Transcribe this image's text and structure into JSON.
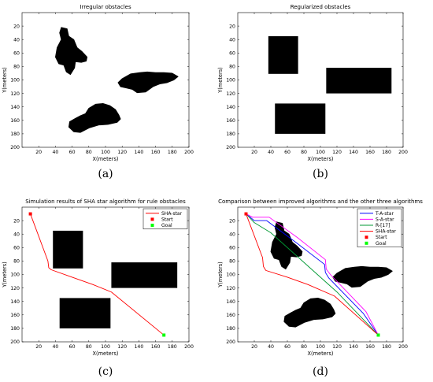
{
  "figure": {
    "panels": [
      {
        "caption": "(a)"
      },
      {
        "caption": "(b)"
      },
      {
        "caption": "(c)"
      },
      {
        "caption": "(d)"
      }
    ]
  },
  "chart_data": [
    {
      "type": "map",
      "title": "Irregular obstacles",
      "xlabel": "X(meters)",
      "ylabel": "Y(meters)",
      "xlim": [
        0,
        200
      ],
      "ylim": [
        0,
        200
      ],
      "y_inverted": true,
      "xticks": [
        20,
        40,
        60,
        80,
        100,
        120,
        140,
        160,
        180,
        200
      ],
      "yticks": [
        20,
        40,
        60,
        80,
        100,
        120,
        140,
        160,
        180,
        200
      ],
      "grid": false,
      "obstacles": [
        {
          "name": "irregular-obstacle-1",
          "polygon": [
            [
              47,
              22
            ],
            [
              54,
              24
            ],
            [
              56,
              35
            ],
            [
              62,
              40
            ],
            [
              66,
              52
            ],
            [
              72,
              58
            ],
            [
              78,
              66
            ],
            [
              77,
              72
            ],
            [
              71,
              74
            ],
            [
              64,
              73
            ],
            [
              63,
              82
            ],
            [
              58,
              92
            ],
            [
              53,
              88
            ],
            [
              50,
              78
            ],
            [
              44,
              76
            ],
            [
              40,
              66
            ],
            [
              42,
              52
            ],
            [
              47,
              40
            ],
            [
              45,
              30
            ]
          ]
        },
        {
          "name": "irregular-obstacle-2",
          "polygon": [
            [
              120,
              98
            ],
            [
              130,
              91
            ],
            [
              141,
              89
            ],
            [
              150,
              88
            ],
            [
              160,
              89
            ],
            [
              170,
              89
            ],
            [
              180,
              90
            ],
            [
              187,
              95
            ],
            [
              182,
              100
            ],
            [
              174,
              104
            ],
            [
              165,
              106
            ],
            [
              157,
              110
            ],
            [
              148,
              118
            ],
            [
              138,
              119
            ],
            [
              132,
              114
            ],
            [
              125,
              112
            ],
            [
              118,
              110
            ],
            [
              115,
              104
            ]
          ]
        },
        {
          "name": "irregular-obstacle-3",
          "polygon": [
            [
              70,
              153
            ],
            [
              76,
              150
            ],
            [
              80,
              142
            ],
            [
              88,
              136
            ],
            [
              97,
              135
            ],
            [
              105,
              138
            ],
            [
              112,
              144
            ],
            [
              116,
              152
            ],
            [
              118,
              158
            ],
            [
              114,
              163
            ],
            [
              103,
              166
            ],
            [
              92,
              167
            ],
            [
              81,
              171
            ],
            [
              70,
              178
            ],
            [
              62,
              177
            ],
            [
              56,
              170
            ],
            [
              57,
              162
            ],
            [
              64,
              157
            ]
          ]
        }
      ]
    },
    {
      "type": "map",
      "title": "Regularized obstacles",
      "xlabel": "X(meters)",
      "ylabel": "Y(meters)",
      "xlim": [
        0,
        200
      ],
      "ylim": [
        0,
        200
      ],
      "y_inverted": true,
      "xticks": [
        20,
        40,
        60,
        80,
        100,
        120,
        140,
        160,
        180,
        200
      ],
      "yticks": [
        20,
        40,
        60,
        80,
        100,
        120,
        140,
        160,
        180,
        200
      ],
      "grid": false,
      "obstacles": [
        {
          "name": "rect-obstacle-1",
          "x": [
            37,
            73
          ],
          "y": [
            35,
            91
          ]
        },
        {
          "name": "rect-obstacle-2",
          "x": [
            107,
            186
          ],
          "y": [
            82,
            120
          ]
        },
        {
          "name": "rect-obstacle-3",
          "x": [
            45,
            106
          ],
          "y": [
            135,
            180
          ]
        }
      ]
    },
    {
      "type": "line",
      "title": "Simulation results of SHA star algorithm for rule obstacles",
      "xlabel": "X(meters)",
      "ylabel": "Y(meters)",
      "xlim": [
        0,
        200
      ],
      "ylim": [
        0,
        200
      ],
      "y_inverted": true,
      "xticks": [
        20,
        40,
        60,
        80,
        100,
        120,
        140,
        160,
        180,
        200
      ],
      "yticks": [
        20,
        40,
        60,
        80,
        100,
        120,
        140,
        160,
        180,
        200
      ],
      "grid": false,
      "legend_position": "top-right",
      "obstacles": [
        {
          "name": "rect-obstacle-1",
          "x": [
            37,
            73
          ],
          "y": [
            35,
            91
          ]
        },
        {
          "name": "rect-obstacle-2",
          "x": [
            107,
            186
          ],
          "y": [
            82,
            120
          ]
        },
        {
          "name": "rect-obstacle-3",
          "x": [
            45,
            106
          ],
          "y": [
            135,
            180
          ]
        }
      ],
      "series": [
        {
          "name": "SHA-star",
          "color": "#ff0000",
          "x": [
            10,
            31,
            32,
            35,
            60,
            85,
            107,
            170
          ],
          "y": [
            10,
            80,
            90,
            93,
            104,
            115,
            126,
            190
          ]
        }
      ],
      "markers": [
        {
          "name": "Start",
          "color": "#ff0000",
          "x": 10,
          "y": 10
        },
        {
          "name": "Goal",
          "color": "#00ff00",
          "x": 170,
          "y": 190
        }
      ]
    },
    {
      "type": "line",
      "title": "Comparison between improved algorithms and the other three algorithms",
      "xlabel": "X(meters)",
      "ylabel": "Y(meters)",
      "xlim": [
        0,
        200
      ],
      "ylim": [
        0,
        200
      ],
      "y_inverted": true,
      "xticks": [
        20,
        40,
        60,
        80,
        100,
        120,
        140,
        160,
        180,
        200
      ],
      "yticks": [
        20,
        40,
        60,
        80,
        100,
        120,
        140,
        160,
        180,
        200
      ],
      "grid": false,
      "legend_position": "top-right",
      "obstacles": [
        {
          "name": "irregular-obstacle-1",
          "polygon": [
            [
              47,
              22
            ],
            [
              54,
              24
            ],
            [
              56,
              35
            ],
            [
              62,
              40
            ],
            [
              66,
              52
            ],
            [
              72,
              58
            ],
            [
              78,
              66
            ],
            [
              77,
              72
            ],
            [
              71,
              74
            ],
            [
              64,
              73
            ],
            [
              63,
              82
            ],
            [
              58,
              92
            ],
            [
              53,
              88
            ],
            [
              50,
              78
            ],
            [
              44,
              76
            ],
            [
              40,
              66
            ],
            [
              42,
              52
            ],
            [
              47,
              40
            ],
            [
              45,
              30
            ]
          ]
        },
        {
          "name": "irregular-obstacle-2",
          "polygon": [
            [
              120,
              98
            ],
            [
              130,
              91
            ],
            [
              141,
              89
            ],
            [
              150,
              88
            ],
            [
              160,
              89
            ],
            [
              170,
              89
            ],
            [
              180,
              90
            ],
            [
              187,
              95
            ],
            [
              182,
              100
            ],
            [
              174,
              104
            ],
            [
              165,
              106
            ],
            [
              157,
              110
            ],
            [
              148,
              118
            ],
            [
              138,
              119
            ],
            [
              132,
              114
            ],
            [
              125,
              112
            ],
            [
              118,
              110
            ],
            [
              115,
              104
            ]
          ]
        },
        {
          "name": "irregular-obstacle-3",
          "polygon": [
            [
              70,
              153
            ],
            [
              76,
              150
            ],
            [
              80,
              142
            ],
            [
              88,
              136
            ],
            [
              97,
              135
            ],
            [
              105,
              138
            ],
            [
              112,
              144
            ],
            [
              116,
              152
            ],
            [
              118,
              158
            ],
            [
              114,
              163
            ],
            [
              103,
              166
            ],
            [
              92,
              167
            ],
            [
              81,
              171
            ],
            [
              70,
              178
            ],
            [
              62,
              177
            ],
            [
              56,
              170
            ],
            [
              57,
              162
            ],
            [
              64,
              157
            ]
          ]
        }
      ],
      "series": [
        {
          "name": "T-A-star",
          "color": "#0000ff",
          "x": [
            10,
            20,
            35,
            70,
            105,
            106,
            110,
            152,
            170
          ],
          "y": [
            10,
            20,
            20,
            52,
            85,
            97,
            105,
            158,
            190
          ]
        },
        {
          "name": "S-A-star",
          "color": "#ff00ff",
          "x": [
            10,
            18,
            38,
            72,
            106,
            107,
            112,
            155,
            170
          ],
          "y": [
            10,
            15,
            15,
            45,
            78,
            92,
            100,
            155,
            190
          ]
        },
        {
          "name": "R-[17]",
          "color": "#009933",
          "x": [
            10,
            20,
            40,
            80,
            120,
            170
          ],
          "y": [
            10,
            23,
            38,
            82,
            126,
            190
          ]
        },
        {
          "name": "SHA-star",
          "color": "#ff0000",
          "x": [
            10,
            30,
            31,
            34,
            60,
            85,
            117,
            170
          ],
          "y": [
            10,
            75,
            88,
            94,
            104,
            115,
            132,
            190
          ]
        }
      ],
      "markers": [
        {
          "name": "Start",
          "color": "#ff0000",
          "x": 10,
          "y": 10
        },
        {
          "name": "Goal",
          "color": "#00ff00",
          "x": 170,
          "y": 190
        }
      ]
    }
  ]
}
